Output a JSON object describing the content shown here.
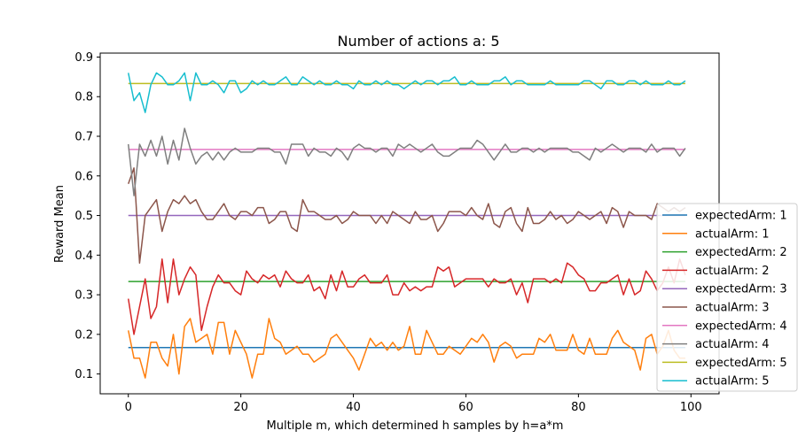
{
  "chart_data": {
    "type": "line",
    "title": "Number of actions a: 5",
    "xlabel": "Multiple m, which determined h samples by h=a*m",
    "ylabel": "Reward Mean",
    "xlim": [
      -5,
      105
    ],
    "ylim": [
      0.05,
      0.91
    ],
    "xticks": [
      0,
      20,
      40,
      60,
      80,
      100
    ],
    "yticks": [
      0.1,
      0.2,
      0.3,
      0.4,
      0.5,
      0.6,
      0.7,
      0.8,
      0.9
    ],
    "grid": false,
    "legend_position": "lower-right",
    "x_range": [
      0,
      99
    ],
    "series": [
      {
        "name": "expectedArm: 1",
        "color": "#1f77b4",
        "constant": 0.1667
      },
      {
        "name": "actualArm: 1",
        "color": "#ff7f0e",
        "values": [
          0.21,
          0.14,
          0.14,
          0.09,
          0.18,
          0.18,
          0.14,
          0.12,
          0.2,
          0.1,
          0.22,
          0.24,
          0.18,
          0.19,
          0.2,
          0.15,
          0.23,
          0.23,
          0.15,
          0.21,
          0.18,
          0.15,
          0.09,
          0.15,
          0.15,
          0.24,
          0.19,
          0.18,
          0.15,
          0.16,
          0.17,
          0.15,
          0.15,
          0.13,
          0.14,
          0.15,
          0.19,
          0.2,
          0.18,
          0.16,
          0.14,
          0.11,
          0.15,
          0.19,
          0.17,
          0.18,
          0.16,
          0.18,
          0.16,
          0.17,
          0.22,
          0.15,
          0.15,
          0.21,
          0.18,
          0.15,
          0.15,
          0.17,
          0.16,
          0.15,
          0.17,
          0.19,
          0.18,
          0.2,
          0.18,
          0.13,
          0.17,
          0.18,
          0.17,
          0.14,
          0.15,
          0.15,
          0.15,
          0.19,
          0.18,
          0.2,
          0.16,
          0.16,
          0.16,
          0.2,
          0.16,
          0.15,
          0.19,
          0.15,
          0.15,
          0.15,
          0.19,
          0.21,
          0.18,
          0.17,
          0.16,
          0.11,
          0.19,
          0.2,
          0.15,
          0.17,
          0.21,
          0.16,
          0.14,
          0.14
        ]
      },
      {
        "name": "expectedArm: 2",
        "color": "#2ca02c",
        "constant": 0.3333
      },
      {
        "name": "actualArm: 2",
        "color": "#d62728",
        "values": [
          0.29,
          0.2,
          0.27,
          0.34,
          0.24,
          0.27,
          0.39,
          0.28,
          0.39,
          0.3,
          0.34,
          0.37,
          0.35,
          0.21,
          0.27,
          0.32,
          0.35,
          0.33,
          0.33,
          0.31,
          0.3,
          0.36,
          0.34,
          0.33,
          0.35,
          0.34,
          0.35,
          0.32,
          0.36,
          0.34,
          0.33,
          0.33,
          0.35,
          0.31,
          0.32,
          0.29,
          0.35,
          0.31,
          0.36,
          0.32,
          0.32,
          0.34,
          0.35,
          0.33,
          0.33,
          0.33,
          0.35,
          0.3,
          0.3,
          0.33,
          0.31,
          0.32,
          0.31,
          0.32,
          0.32,
          0.37,
          0.36,
          0.37,
          0.32,
          0.33,
          0.34,
          0.34,
          0.34,
          0.34,
          0.32,
          0.34,
          0.33,
          0.33,
          0.34,
          0.3,
          0.33,
          0.28,
          0.34,
          0.34,
          0.34,
          0.33,
          0.34,
          0.33,
          0.38,
          0.37,
          0.35,
          0.34,
          0.31,
          0.31,
          0.33,
          0.33,
          0.34,
          0.35,
          0.3,
          0.34,
          0.3,
          0.31,
          0.36,
          0.34,
          0.31,
          0.33,
          0.37,
          0.33,
          0.39,
          0.35
        ]
      },
      {
        "name": "expectedArm: 3",
        "color": "#9467bd",
        "constant": 0.5
      },
      {
        "name": "actualArm: 3",
        "color": "#8c564b",
        "values": [
          0.58,
          0.62,
          0.38,
          0.5,
          0.52,
          0.54,
          0.46,
          0.51,
          0.54,
          0.53,
          0.55,
          0.53,
          0.54,
          0.51,
          0.49,
          0.49,
          0.51,
          0.53,
          0.5,
          0.49,
          0.51,
          0.51,
          0.5,
          0.52,
          0.52,
          0.48,
          0.49,
          0.51,
          0.51,
          0.47,
          0.46,
          0.54,
          0.51,
          0.51,
          0.5,
          0.49,
          0.49,
          0.5,
          0.48,
          0.49,
          0.51,
          0.5,
          0.5,
          0.5,
          0.48,
          0.5,
          0.48,
          0.51,
          0.5,
          0.49,
          0.48,
          0.51,
          0.49,
          0.49,
          0.5,
          0.46,
          0.48,
          0.51,
          0.51,
          0.51,
          0.5,
          0.52,
          0.5,
          0.49,
          0.53,
          0.48,
          0.47,
          0.51,
          0.52,
          0.48,
          0.46,
          0.52,
          0.48,
          0.48,
          0.49,
          0.51,
          0.49,
          0.5,
          0.48,
          0.49,
          0.51,
          0.5,
          0.49,
          0.5,
          0.51,
          0.48,
          0.52,
          0.51,
          0.47,
          0.51,
          0.5,
          0.5,
          0.5,
          0.49,
          0.53,
          0.52,
          0.51,
          0.52,
          0.51,
          0.52
        ]
      },
      {
        "name": "expectedArm: 4",
        "color": "#e377c2",
        "constant": 0.6667
      },
      {
        "name": "actualArm: 4",
        "color": "#7f7f7f",
        "values": [
          0.68,
          0.55,
          0.68,
          0.65,
          0.69,
          0.65,
          0.7,
          0.63,
          0.69,
          0.64,
          0.72,
          0.67,
          0.63,
          0.65,
          0.66,
          0.64,
          0.66,
          0.64,
          0.66,
          0.67,
          0.66,
          0.66,
          0.66,
          0.67,
          0.67,
          0.67,
          0.66,
          0.66,
          0.63,
          0.68,
          0.68,
          0.68,
          0.65,
          0.67,
          0.66,
          0.66,
          0.65,
          0.67,
          0.66,
          0.64,
          0.67,
          0.68,
          0.67,
          0.67,
          0.66,
          0.67,
          0.67,
          0.65,
          0.68,
          0.67,
          0.68,
          0.67,
          0.66,
          0.67,
          0.68,
          0.66,
          0.65,
          0.65,
          0.66,
          0.67,
          0.67,
          0.67,
          0.69,
          0.68,
          0.66,
          0.64,
          0.66,
          0.68,
          0.66,
          0.66,
          0.67,
          0.67,
          0.66,
          0.67,
          0.66,
          0.67,
          0.67,
          0.67,
          0.67,
          0.66,
          0.66,
          0.65,
          0.64,
          0.67,
          0.66,
          0.67,
          0.68,
          0.67,
          0.66,
          0.67,
          0.67,
          0.67,
          0.66,
          0.68,
          0.66,
          0.67,
          0.67,
          0.67,
          0.65,
          0.67
        ]
      },
      {
        "name": "expectedArm: 5",
        "color": "#bcbd22",
        "constant": 0.8333
      },
      {
        "name": "actualArm: 5",
        "color": "#17becf",
        "values": [
          0.86,
          0.79,
          0.81,
          0.76,
          0.83,
          0.86,
          0.85,
          0.83,
          0.83,
          0.84,
          0.86,
          0.79,
          0.86,
          0.83,
          0.83,
          0.84,
          0.83,
          0.81,
          0.84,
          0.84,
          0.81,
          0.82,
          0.84,
          0.83,
          0.84,
          0.83,
          0.83,
          0.84,
          0.85,
          0.83,
          0.83,
          0.85,
          0.84,
          0.83,
          0.84,
          0.83,
          0.83,
          0.84,
          0.83,
          0.83,
          0.82,
          0.84,
          0.83,
          0.83,
          0.84,
          0.83,
          0.84,
          0.83,
          0.83,
          0.82,
          0.83,
          0.84,
          0.83,
          0.84,
          0.84,
          0.83,
          0.84,
          0.84,
          0.85,
          0.83,
          0.83,
          0.84,
          0.83,
          0.83,
          0.83,
          0.84,
          0.84,
          0.85,
          0.83,
          0.84,
          0.84,
          0.83,
          0.83,
          0.83,
          0.83,
          0.84,
          0.83,
          0.83,
          0.83,
          0.83,
          0.83,
          0.84,
          0.84,
          0.83,
          0.82,
          0.84,
          0.84,
          0.83,
          0.83,
          0.84,
          0.84,
          0.83,
          0.84,
          0.83,
          0.83,
          0.83,
          0.84,
          0.83,
          0.83,
          0.84
        ]
      }
    ]
  }
}
